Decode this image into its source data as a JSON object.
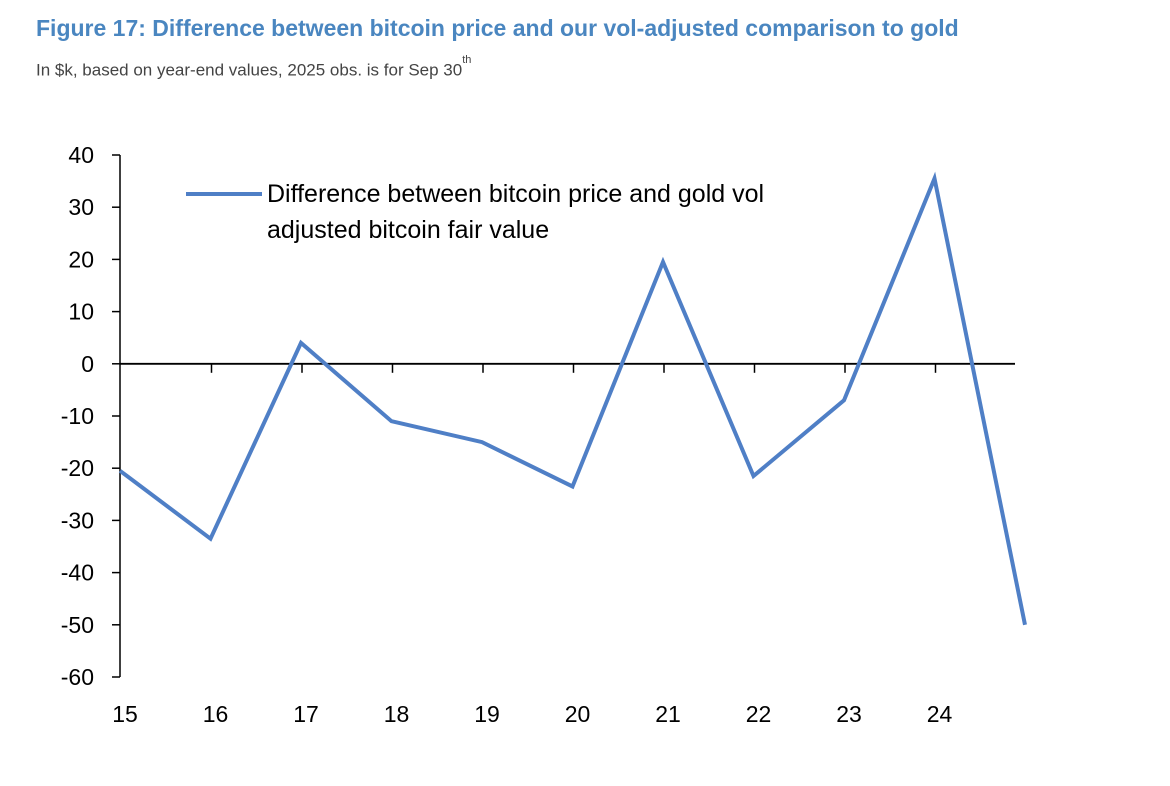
{
  "figure": {
    "title": "Figure 17: Difference between bitcoin price and our vol-adjusted comparison to gold",
    "subtitle_main": "In $k, based on year-end values, 2025 obs. is for Sep 30",
    "subtitle_sup": "th"
  },
  "colors": {
    "title": "#4a86c0",
    "series_line": "#4f7fc6",
    "axis": "#000000"
  },
  "chart_data": {
    "type": "line",
    "x": [
      "15",
      "16",
      "17",
      "18",
      "19",
      "20",
      "21",
      "22",
      "23",
      "24",
      "25"
    ],
    "x_tick_labels": [
      "15",
      "16",
      "17",
      "18",
      "19",
      "20",
      "21",
      "22",
      "23",
      "24"
    ],
    "series": [
      {
        "name": "Difference between bitcoin price and gold vol adjusted bitcoin fair value",
        "legend_lines": [
          "Difference between bitcoin price and gold vol",
          "adjusted bitcoin fair value"
        ],
        "values": [
          -20.5,
          -33.5,
          4,
          -11,
          -15,
          -23.5,
          19.5,
          -21.5,
          -7,
          35.5,
          -50
        ]
      }
    ],
    "y_ticks": [
      40,
      30,
      20,
      10,
      0,
      -10,
      -20,
      -30,
      -40,
      -50,
      -60
    ],
    "ylim": [
      -60,
      40
    ],
    "title": "",
    "xlabel": "",
    "ylabel": "",
    "grid": false,
    "legend_position": "top-left"
  }
}
